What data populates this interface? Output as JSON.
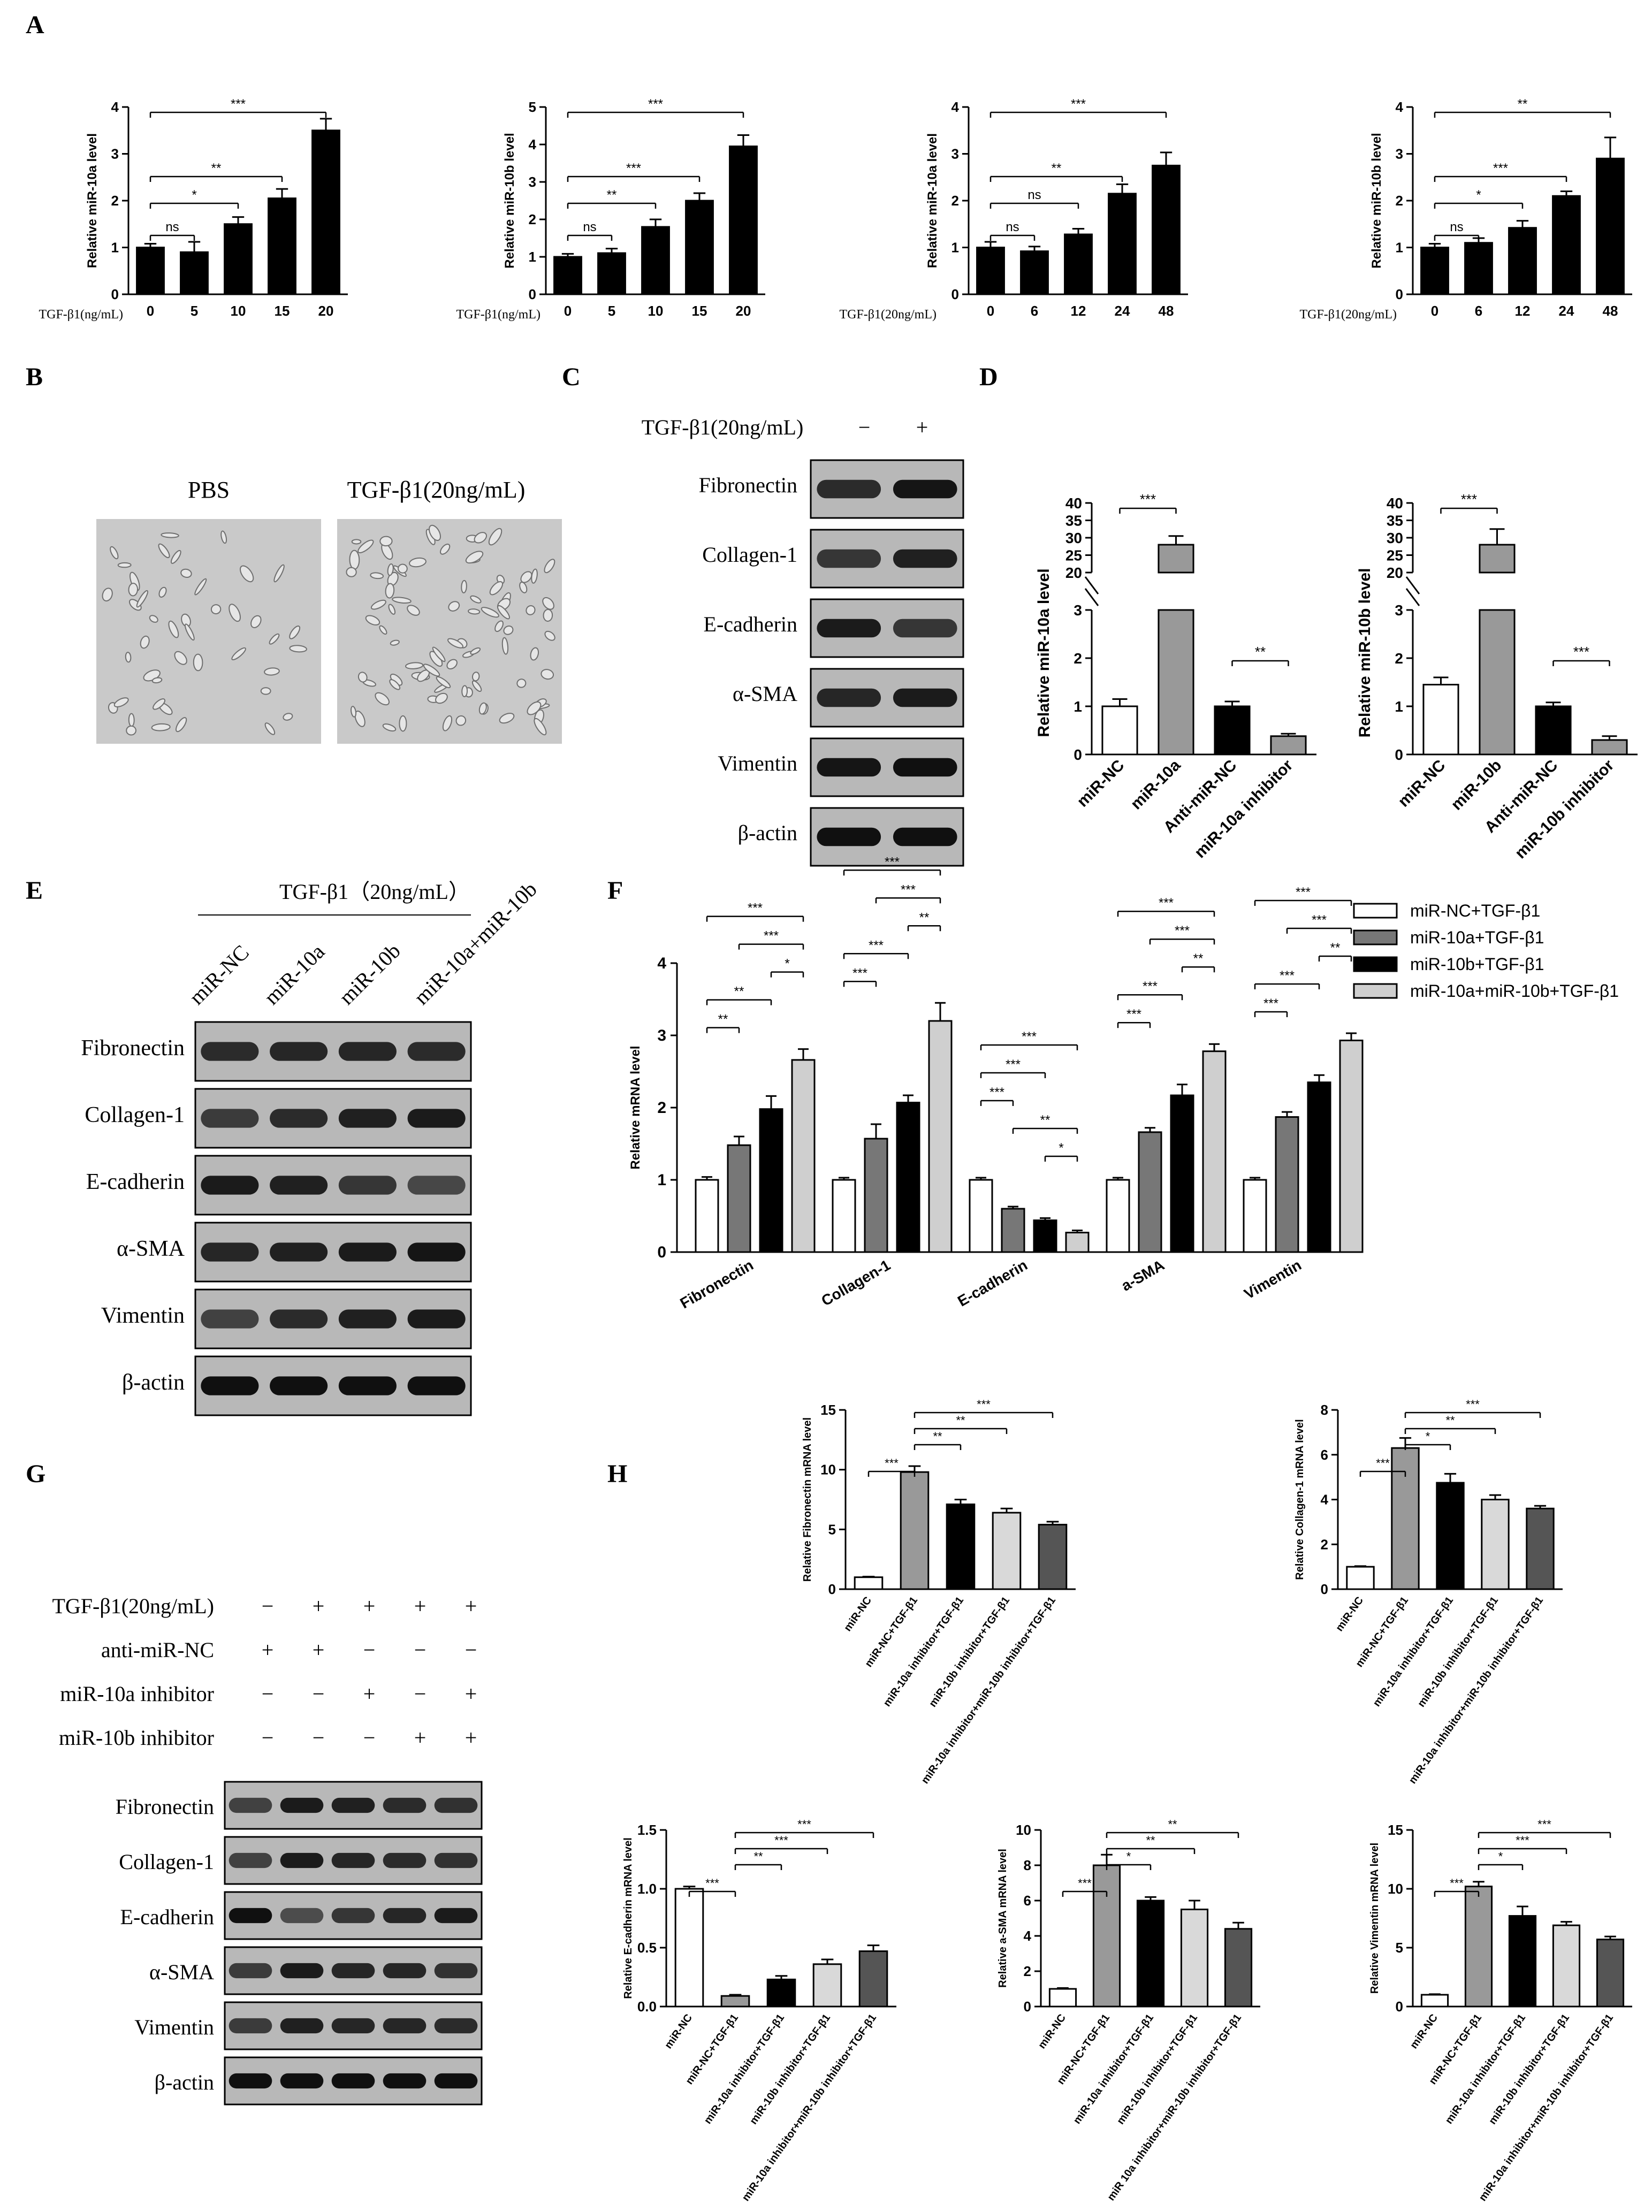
{
  "panel_letters": [
    "A",
    "B",
    "C",
    "D",
    "E",
    "F",
    "G",
    "H"
  ],
  "colors": {
    "black": "#000000",
    "dark_gray": "#666666",
    "light_gray": "#cfcfcf",
    "white": "#ffffff",
    "blot_bg": "#b8b8b8",
    "cell_bg": "#c9c9c9"
  },
  "panel_b": {
    "label_left": "PBS",
    "label_right": "TGF-β1(20ng/mL)"
  },
  "panel_c": {
    "header": "TGF-β1(20ng/mL)",
    "signs": [
      "−",
      "+"
    ],
    "rows": [
      "Fibronectin",
      "Collagen-1",
      "E-cadherin",
      "α-SMA",
      "Vimentin",
      "β-actin"
    ]
  },
  "panel_e": {
    "header": "TGF-β1（20ng/mL）",
    "lanes": [
      "miR-NC",
      "miR-10a",
      "miR-10b",
      "miR-10a+miR-10b"
    ],
    "rows": [
      "Fibronectin",
      "Collagen-1",
      "E-cadherin",
      "α-SMA",
      "Vimentin",
      "β-actin"
    ]
  },
  "panel_g": {
    "treatments": [
      {
        "label": "TGF-β1(20ng/mL)",
        "signs": [
          "−",
          "+",
          "+",
          "+",
          "+"
        ]
      },
      {
        "label": "anti-miR-NC",
        "signs": [
          "+",
          "+",
          "−",
          "−",
          "−"
        ]
      },
      {
        "label": "miR-10a inhibitor",
        "signs": [
          "−",
          "−",
          "+",
          "−",
          "+"
        ]
      },
      {
        "label": "miR-10b inhibitor",
        "signs": [
          "−",
          "−",
          "−",
          "+",
          "+"
        ]
      }
    ],
    "rows": [
      "Fibronectin",
      "Collagen-1",
      "E-cadherin",
      "α-SMA",
      "Vimentin",
      "β-actin"
    ]
  },
  "chart_data": [
    {
      "panel": "A",
      "type": "bar",
      "ylabel": "Relative miR-10a level",
      "xlabel": "TGF-β1(ng/mL)",
      "categories": [
        "0",
        "5",
        "10",
        "15",
        "20"
      ],
      "values": [
        1.0,
        0.9,
        1.5,
        2.05,
        3.5
      ],
      "errors": [
        0.08,
        0.22,
        0.15,
        0.2,
        0.25
      ],
      "ylim": [
        0,
        4
      ],
      "yticks": [
        "0",
        "1",
        "2",
        "3",
        "4"
      ],
      "fills": [
        "#000000",
        "#000000",
        "#000000",
        "#000000",
        "#000000"
      ],
      "brackets": [
        {
          "from": 0,
          "to": 1,
          "label": "ns"
        },
        {
          "from": 0,
          "to": 2,
          "label": "*"
        },
        {
          "from": 0,
          "to": 3,
          "label": "**"
        },
        {
          "from": 0,
          "to": 4,
          "label": "***"
        }
      ]
    },
    {
      "panel": "A",
      "type": "bar",
      "ylabel": "Relative miR-10b level",
      "xlabel": "TGF-β1(ng/mL)",
      "categories": [
        "0",
        "5",
        "10",
        "15",
        "20"
      ],
      "values": [
        1.0,
        1.1,
        1.8,
        2.5,
        3.95
      ],
      "errors": [
        0.08,
        0.12,
        0.2,
        0.2,
        0.3
      ],
      "ylim": [
        0,
        5
      ],
      "yticks": [
        "0",
        "1",
        "2",
        "3",
        "4",
        "5"
      ],
      "fills": [
        "#000000",
        "#000000",
        "#000000",
        "#000000",
        "#000000"
      ],
      "brackets": [
        {
          "from": 0,
          "to": 1,
          "label": "ns"
        },
        {
          "from": 0,
          "to": 2,
          "label": "**"
        },
        {
          "from": 0,
          "to": 3,
          "label": "***"
        },
        {
          "from": 0,
          "to": 4,
          "label": "***"
        }
      ]
    },
    {
      "panel": "A",
      "type": "bar",
      "ylabel": "Relative miR-10a level",
      "xlabel": "TGF-β1(20ng/mL)",
      "categories": [
        "0",
        "6",
        "12",
        "24",
        "48"
      ],
      "values": [
        1.0,
        0.92,
        1.28,
        2.15,
        2.75
      ],
      "errors": [
        0.12,
        0.1,
        0.12,
        0.2,
        0.28
      ],
      "ylim": [
        0,
        4
      ],
      "yticks": [
        "0",
        "1",
        "2",
        "3",
        "4"
      ],
      "fills": [
        "#000000",
        "#000000",
        "#000000",
        "#000000",
        "#000000"
      ],
      "brackets": [
        {
          "from": 0,
          "to": 1,
          "label": "ns"
        },
        {
          "from": 0,
          "to": 2,
          "label": "ns"
        },
        {
          "from": 0,
          "to": 3,
          "label": "**"
        },
        {
          "from": 0,
          "to": 4,
          "label": "***"
        }
      ]
    },
    {
      "panel": "A",
      "type": "bar",
      "ylabel": "Relative miR-10b level",
      "xlabel": "TGF-β1(20ng/mL)",
      "categories": [
        "0",
        "6",
        "12",
        "24",
        "48"
      ],
      "values": [
        1.0,
        1.1,
        1.42,
        2.1,
        2.9
      ],
      "errors": [
        0.08,
        0.1,
        0.15,
        0.1,
        0.45
      ],
      "ylim": [
        0,
        4
      ],
      "yticks": [
        "0",
        "1",
        "2",
        "3",
        "4"
      ],
      "fills": [
        "#000000",
        "#000000",
        "#000000",
        "#000000",
        "#000000"
      ],
      "brackets": [
        {
          "from": 0,
          "to": 1,
          "label": "ns"
        },
        {
          "from": 0,
          "to": 2,
          "label": "*"
        },
        {
          "from": 0,
          "to": 3,
          "label": "***"
        },
        {
          "from": 0,
          "to": 4,
          "label": "**"
        }
      ]
    },
    {
      "panel": "D",
      "type": "bar",
      "broken_axis": true,
      "ylabel": "Relative miR-10a level",
      "categories": [
        "miR-NC",
        "miR-10a",
        "Anti-miR-NC",
        "miR-10a inhibitor"
      ],
      "values": [
        1.0,
        28.0,
        1.0,
        0.38
      ],
      "errors": [
        0.15,
        2.5,
        0.1,
        0.05
      ],
      "yticks_low": [
        "0",
        "1",
        "2",
        "3"
      ],
      "yticks_high": [
        "20",
        "25",
        "30",
        "35",
        "40"
      ],
      "fills": [
        "#ffffff",
        "#999999",
        "#000000",
        "#999999"
      ],
      "brackets": [
        {
          "from": 0,
          "to": 1,
          "label": "***"
        },
        {
          "from": 2,
          "to": 3,
          "label": "**"
        }
      ]
    },
    {
      "panel": "D",
      "type": "bar",
      "broken_axis": true,
      "ylabel": "Relative miR-10b level",
      "categories": [
        "miR-NC",
        "miR-10b",
        "Anti-miR-NC",
        "miR-10b inhibitor"
      ],
      "values": [
        1.45,
        28.0,
        1.0,
        0.3
      ],
      "errors": [
        0.15,
        4.5,
        0.08,
        0.08
      ],
      "yticks_low": [
        "0",
        "1",
        "2",
        "3"
      ],
      "yticks_high": [
        "20",
        "25",
        "30",
        "35",
        "40"
      ],
      "fills": [
        "#ffffff",
        "#999999",
        "#000000",
        "#999999"
      ],
      "brackets": [
        {
          "from": 0,
          "to": 1,
          "label": "***"
        },
        {
          "from": 2,
          "to": 3,
          "label": "***"
        }
      ]
    },
    {
      "panel": "F",
      "type": "bar",
      "ylabel": "Relative mRNA level",
      "categories": [
        "Fibronectin",
        "Collagen-1",
        "E-cadherin",
        "a-SMA",
        "Vimentin"
      ],
      "ylim": [
        0,
        4
      ],
      "yticks": [
        "0",
        "1",
        "2",
        "3",
        "4"
      ],
      "series": [
        {
          "name": "miR-NC+TGF-β1",
          "color": "#ffffff",
          "values": [
            1.0,
            1.0,
            1.0,
            1.0,
            1.0
          ],
          "errors": [
            0.04,
            0.03,
            0.03,
            0.03,
            0.03
          ]
        },
        {
          "name": "miR-10a+TGF-β1",
          "color": "#777777",
          "values": [
            1.48,
            1.57,
            0.6,
            1.66,
            1.87
          ],
          "errors": [
            0.12,
            0.2,
            0.03,
            0.06,
            0.07
          ]
        },
        {
          "name": "miR-10b+TGF-β1",
          "color": "#000000",
          "values": [
            1.98,
            2.07,
            0.44,
            2.17,
            2.35
          ],
          "errors": [
            0.18,
            0.1,
            0.03,
            0.15,
            0.1
          ]
        },
        {
          "name": "miR-10a+miR-10b+TGF-β1",
          "color": "#cfcfcf",
          "values": [
            2.66,
            3.2,
            0.27,
            2.78,
            2.93
          ],
          "errors": [
            0.15,
            0.25,
            0.03,
            0.1,
            0.1
          ]
        }
      ],
      "brackets": [
        [
          {
            "from": 0,
            "to": 1,
            "label": "**"
          },
          {
            "from": 0,
            "to": 2,
            "label": "**"
          },
          {
            "from": 2,
            "to": 3,
            "label": "*"
          },
          {
            "from": 1,
            "to": 3,
            "label": "***"
          },
          {
            "from": 0,
            "to": 3,
            "label": "***"
          }
        ],
        [
          {
            "from": 0,
            "to": 1,
            "label": "***"
          },
          {
            "from": 0,
            "to": 2,
            "label": "***"
          },
          {
            "from": 2,
            "to": 3,
            "label": "**"
          },
          {
            "from": 1,
            "to": 3,
            "label": "***"
          },
          {
            "from": 0,
            "to": 3,
            "label": "***"
          }
        ],
        [
          {
            "from": 2,
            "to": 3,
            "label": "*"
          },
          {
            "from": 1,
            "to": 3,
            "label": "**"
          },
          {
            "from": 0,
            "to": 1,
            "label": "***"
          },
          {
            "from": 0,
            "to": 2,
            "label": "***"
          },
          {
            "from": 0,
            "to": 3,
            "label": "***"
          }
        ],
        [
          {
            "from": 0,
            "to": 1,
            "label": "***"
          },
          {
            "from": 0,
            "to": 2,
            "label": "***"
          },
          {
            "from": 2,
            "to": 3,
            "label": "**"
          },
          {
            "from": 1,
            "to": 3,
            "label": "***"
          },
          {
            "from": 0,
            "to": 3,
            "label": "***"
          }
        ],
        [
          {
            "from": 0,
            "to": 1,
            "label": "***"
          },
          {
            "from": 0,
            "to": 2,
            "label": "***"
          },
          {
            "from": 2,
            "to": 3,
            "label": "**"
          },
          {
            "from": 1,
            "to": 3,
            "label": "***"
          },
          {
            "from": 0,
            "to": 3,
            "label": "***"
          }
        ]
      ]
    },
    {
      "panel": "H",
      "type": "bar",
      "ylabel": "Relative Fibronectin mRNA level",
      "categories": [
        "miR-NC",
        "miR-NC+TGF-β1",
        "miR-10a inhibitor+TGF-β1",
        "miR-10b inhibitor+TGF-β1",
        "miR-10a inhibitor+miR-10b inhibitor+TGF-β1"
      ],
      "values": [
        1.0,
        9.8,
        7.1,
        6.4,
        5.4
      ],
      "errors": [
        0.05,
        0.5,
        0.4,
        0.35,
        0.25
      ],
      "ylim": [
        0,
        15
      ],
      "yticks": [
        "0",
        "5",
        "10",
        "15"
      ],
      "fills": [
        "#ffffff",
        "#999999",
        "#000000",
        "#d9d9d9",
        "#555555"
      ],
      "brackets": [
        {
          "from": 0,
          "to": 1,
          "label": "***"
        },
        {
          "from": 1,
          "to": 2,
          "label": "**"
        },
        {
          "from": 1,
          "to": 3,
          "label": "**"
        },
        {
          "from": 1,
          "to": 4,
          "label": "***"
        }
      ]
    },
    {
      "panel": "H",
      "type": "bar",
      "ylabel": "Relative Collagen-1 mRNA level",
      "categories": [
        "miR-NC",
        "miR-NC+TGF-β1",
        "miR-10a inhibitor+TGF-β1",
        "miR-10b inhibitor+TGF-β1",
        "miR-10a inhibitor+miR-10b inhibitor+TGF-β1"
      ],
      "values": [
        1.0,
        6.3,
        4.75,
        4.0,
        3.6
      ],
      "errors": [
        0.03,
        0.45,
        0.4,
        0.2,
        0.12
      ],
      "ylim": [
        0,
        8
      ],
      "yticks": [
        "0",
        "2",
        "4",
        "6",
        "8"
      ],
      "fills": [
        "#ffffff",
        "#999999",
        "#000000",
        "#d9d9d9",
        "#555555"
      ],
      "brackets": [
        {
          "from": 0,
          "to": 1,
          "label": "***"
        },
        {
          "from": 1,
          "to": 2,
          "label": "*"
        },
        {
          "from": 1,
          "to": 3,
          "label": "**"
        },
        {
          "from": 1,
          "to": 4,
          "label": "***"
        }
      ]
    },
    {
      "panel": "H",
      "type": "bar",
      "ylabel": "Relative E-cadherin mRNA level",
      "categories": [
        "miR-NC",
        "miR-NC+TGF-β1",
        "miR-10a inhibitor+TGF-β1",
        "miR-10b inhibitor+TGF-β1",
        "miR-10a inhibitor+miR-10b inhibitor+TGF-β1"
      ],
      "values": [
        1.0,
        0.09,
        0.23,
        0.36,
        0.47
      ],
      "errors": [
        0.02,
        0.01,
        0.03,
        0.04,
        0.05
      ],
      "ylim": [
        0,
        1.5
      ],
      "yticks": [
        "0.0",
        "0.5",
        "1.0",
        "1.5"
      ],
      "fills": [
        "#ffffff",
        "#999999",
        "#000000",
        "#d9d9d9",
        "#555555"
      ],
      "brackets": [
        {
          "from": 0,
          "to": 1,
          "label": "***"
        },
        {
          "from": 1,
          "to": 2,
          "label": "**"
        },
        {
          "from": 1,
          "to": 3,
          "label": "***"
        },
        {
          "from": 1,
          "to": 4,
          "label": "***"
        }
      ]
    },
    {
      "panel": "H",
      "type": "bar",
      "ylabel": "Relative a-SMA mRNA level",
      "categories": [
        "miR-NC",
        "miR-NC+TGF-β1",
        "miR-10a inhibitor+TGF-β1",
        "miR-10b inhibitor+TGF-β1",
        "miR 10a inhibitor+miR-10b inhibitor+TGF-β1"
      ],
      "values": [
        1.0,
        8.0,
        6.0,
        5.5,
        4.4
      ],
      "errors": [
        0.05,
        0.6,
        0.2,
        0.5,
        0.35
      ],
      "ylim": [
        0,
        10
      ],
      "yticks": [
        "0",
        "2",
        "4",
        "6",
        "8",
        "10"
      ],
      "fills": [
        "#ffffff",
        "#999999",
        "#000000",
        "#d9d9d9",
        "#555555"
      ],
      "brackets": [
        {
          "from": 0,
          "to": 1,
          "label": "***"
        },
        {
          "from": 1,
          "to": 2,
          "label": "*"
        },
        {
          "from": 1,
          "to": 3,
          "label": "**"
        },
        {
          "from": 1,
          "to": 4,
          "label": "**"
        }
      ]
    },
    {
      "panel": "H",
      "type": "bar",
      "ylabel": "Relative Vimentin mRNA level",
      "categories": [
        "miR-NC",
        "miR-NC+TGF-β1",
        "miR-10a inhibitor+TGF-β1",
        "miR-10b inhibitor+TGF-β1",
        "miR-10a inhibitor+miR-10b inhibitor+TGF-β1"
      ],
      "values": [
        1.0,
        10.2,
        7.7,
        6.9,
        5.7
      ],
      "errors": [
        0.05,
        0.4,
        0.8,
        0.3,
        0.25
      ],
      "ylim": [
        0,
        15
      ],
      "yticks": [
        "0",
        "5",
        "10",
        "15"
      ],
      "fills": [
        "#ffffff",
        "#999999",
        "#000000",
        "#d9d9d9",
        "#555555"
      ],
      "brackets": [
        {
          "from": 0,
          "to": 1,
          "label": "***"
        },
        {
          "from": 1,
          "to": 2,
          "label": "*"
        },
        {
          "from": 1,
          "to": 3,
          "label": "***"
        },
        {
          "from": 1,
          "to": 4,
          "label": "***"
        }
      ]
    }
  ]
}
